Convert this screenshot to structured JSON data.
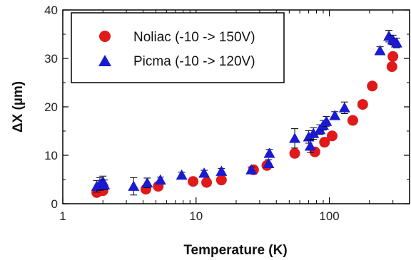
{
  "chart_data": {
    "type": "scatter",
    "xlabel": "Temperature (K)",
    "ylabel": "ΔX (µm)",
    "x_scale": "log",
    "xlim": [
      1,
      400
    ],
    "ylim": [
      0,
      40
    ],
    "x_ticks": [
      1,
      10,
      100
    ],
    "x_tick_labels": [
      "1",
      "10",
      "100"
    ],
    "y_ticks": [
      0,
      10,
      20,
      30,
      40
    ],
    "y_tick_labels": [
      "0",
      "10",
      "20",
      "30",
      "40"
    ],
    "grid": false,
    "legend_position": "top-left",
    "series": [
      {
        "name": "Noliac (-10 -> 150V)",
        "marker": "circle",
        "color": "#e01a1a",
        "points": [
          {
            "x": 1.8,
            "y": 2.3
          },
          {
            "x": 1.85,
            "y": 2.8
          },
          {
            "x": 1.9,
            "y": 3.2
          },
          {
            "x": 2.0,
            "y": 2.7
          },
          {
            "x": 4.2,
            "y": 3.0
          },
          {
            "x": 5.2,
            "y": 3.6
          },
          {
            "x": 9.5,
            "y": 4.6
          },
          {
            "x": 12,
            "y": 4.4
          },
          {
            "x": 15.5,
            "y": 4.9
          },
          {
            "x": 27,
            "y": 7.0
          },
          {
            "x": 34,
            "y": 7.9
          },
          {
            "x": 55,
            "y": 10.4
          },
          {
            "x": 78,
            "y": 10.7
          },
          {
            "x": 92,
            "y": 12.7
          },
          {
            "x": 105,
            "y": 14.0
          },
          {
            "x": 150,
            "y": 17.2
          },
          {
            "x": 178,
            "y": 20.5
          },
          {
            "x": 210,
            "y": 24.3
          },
          {
            "x": 295,
            "y": 28.3
          },
          {
            "x": 300,
            "y": 30.4
          }
        ]
      },
      {
        "name": "Picma (-10 -> 120V)",
        "marker": "triangle",
        "color": "#1a1ad0",
        "points": [
          {
            "x": 1.8,
            "y": 3.6,
            "err": 1.2
          },
          {
            "x": 1.9,
            "y": 4.1,
            "err": 1.3
          },
          {
            "x": 2.0,
            "y": 4.6,
            "err": 1.1
          },
          {
            "x": 2.05,
            "y": 3.9,
            "err": 1.0
          },
          {
            "x": 3.4,
            "y": 3.6,
            "err": 1.8
          },
          {
            "x": 4.3,
            "y": 4.3,
            "err": 1.0
          },
          {
            "x": 5.4,
            "y": 4.9,
            "err": 0.6
          },
          {
            "x": 7.8,
            "y": 5.9,
            "err": 0.6
          },
          {
            "x": 11.5,
            "y": 6.3,
            "err": 0.6
          },
          {
            "x": 15.5,
            "y": 6.7,
            "err": 0.6
          },
          {
            "x": 26,
            "y": 7.0,
            "err": 0.6
          },
          {
            "x": 35,
            "y": 8.3,
            "err": 0.8
          },
          {
            "x": 35.5,
            "y": 10.4,
            "err": 0.8
          },
          {
            "x": 55,
            "y": 13.5,
            "err": 2.0
          },
          {
            "x": 70,
            "y": 13.8,
            "err": 1.3
          },
          {
            "x": 72,
            "y": 11.9,
            "err": 1.3
          },
          {
            "x": 76,
            "y": 14.5,
            "err": 1.2
          },
          {
            "x": 85,
            "y": 15.3,
            "err": 1.0
          },
          {
            "x": 90,
            "y": 16.2,
            "err": 1.0
          },
          {
            "x": 95,
            "y": 17.0,
            "err": 1.0
          },
          {
            "x": 110,
            "y": 18.2,
            "err": 0.8
          },
          {
            "x": 130,
            "y": 19.8,
            "err": 1.2
          },
          {
            "x": 240,
            "y": 31.6,
            "err": 0.8
          },
          {
            "x": 280,
            "y": 34.6,
            "err": 1.2
          },
          {
            "x": 300,
            "y": 33.8,
            "err": 1.0
          },
          {
            "x": 320,
            "y": 33.2,
            "err": 1.0
          }
        ]
      }
    ]
  }
}
